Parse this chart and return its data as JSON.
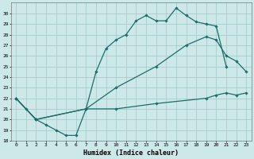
{
  "xlabel": "Humidex (Indice chaleur)",
  "bg_color": "#cce8e8",
  "grid_color": "#aacccc",
  "line_color": "#1a6e6a",
  "xlim": [
    -0.5,
    23.5
  ],
  "ylim": [
    18,
    31
  ],
  "xticks": [
    0,
    1,
    2,
    3,
    4,
    5,
    6,
    7,
    8,
    9,
    10,
    11,
    12,
    13,
    14,
    15,
    16,
    17,
    18,
    19,
    20,
    21,
    22,
    23
  ],
  "yticks": [
    18,
    19,
    20,
    21,
    22,
    23,
    24,
    25,
    26,
    27,
    28,
    29,
    30
  ],
  "line1_x": [
    0,
    1,
    2,
    3,
    4,
    5,
    6,
    7,
    8,
    9,
    10,
    11,
    12,
    13,
    14,
    15,
    16,
    17,
    18,
    19,
    20,
    21
  ],
  "line1_y": [
    22,
    21,
    20,
    19.5,
    19,
    18.5,
    18.5,
    21,
    24.5,
    26.7,
    27.5,
    28,
    29.3,
    29.8,
    29.3,
    29.3,
    30.5,
    29.8,
    29.2,
    29,
    28.8,
    25
  ],
  "line2_x": [
    0,
    2,
    7,
    10,
    14,
    17,
    19,
    20,
    21,
    22,
    23
  ],
  "line2_y": [
    22,
    20,
    21,
    23,
    25,
    27,
    27.8,
    27.5,
    26,
    25.5,
    24.5
  ],
  "line3_x": [
    0,
    2,
    7,
    10,
    14,
    19,
    20,
    21,
    22,
    23
  ],
  "line3_y": [
    22,
    20,
    21,
    21,
    21.5,
    22,
    22.3,
    22.5,
    22.3,
    22.5
  ]
}
